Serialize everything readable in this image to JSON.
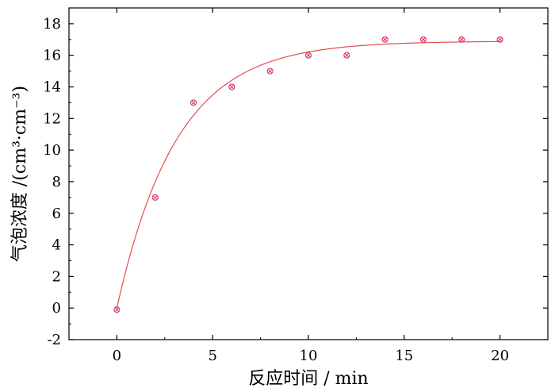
{
  "chart_data": {
    "type": "scatter",
    "xlabel": "反应时间 / min",
    "ylabel": "气泡浓度 /(cm³·cm⁻³)",
    "xlim": [
      -2.5,
      22.5
    ],
    "ylim": [
      -2,
      19
    ],
    "x_ticks": [
      0,
      5,
      10,
      15,
      20
    ],
    "y_ticks": [
      -2,
      0,
      2,
      4,
      6,
      8,
      10,
      12,
      14,
      16,
      18
    ],
    "grid": false,
    "series": [
      {
        "marker": "circle-x",
        "color": "#d6336c",
        "points": [
          {
            "x": 0,
            "y": -0.1
          },
          {
            "x": 2,
            "y": 7.0
          },
          {
            "x": 4,
            "y": 13.0
          },
          {
            "x": 6,
            "y": 14.0
          },
          {
            "x": 8,
            "y": 15.0
          },
          {
            "x": 10,
            "y": 16.0
          },
          {
            "x": 12,
            "y": 16.0
          },
          {
            "x": 14,
            "y": 17.0
          },
          {
            "x": 16,
            "y": 17.0
          },
          {
            "x": 18,
            "y": 17.0
          },
          {
            "x": 20,
            "y": 17.0
          }
        ]
      }
    ],
    "fit_curve": {
      "model": "exponential-rise",
      "color": "#e05050",
      "asymptote": 16.9,
      "rate": 0.32,
      "x_range": [
        0,
        20
      ]
    }
  }
}
